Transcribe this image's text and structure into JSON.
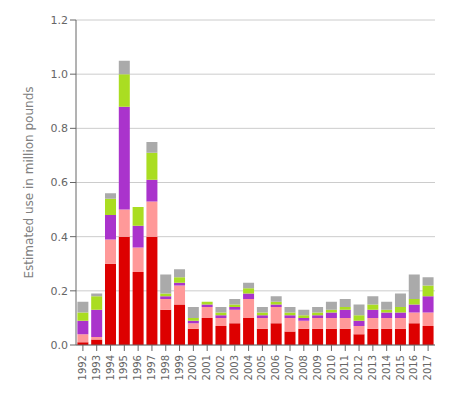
{
  "chart_data": {
    "type": "bar",
    "stacked": true,
    "ylabel": "Estimated use in million pounds",
    "categories": [
      "1992",
      "1993",
      "1994",
      "1995",
      "1996",
      "1997",
      "1998",
      "1999",
      "2000",
      "2001",
      "2002",
      "2003",
      "2004",
      "2005",
      "2006",
      "2007",
      "2008",
      "2009",
      "2010",
      "2011",
      "2012",
      "2013",
      "2014",
      "2015",
      "2016",
      "2017"
    ],
    "series": [
      {
        "color": "#dd0000",
        "values": [
          0.01,
          0.02,
          0.3,
          0.4,
          0.27,
          0.4,
          0.13,
          0.15,
          0.06,
          0.1,
          0.07,
          0.08,
          0.1,
          0.06,
          0.08,
          0.05,
          0.06,
          0.06,
          0.06,
          0.06,
          0.04,
          0.06,
          0.06,
          0.06,
          0.08,
          0.07
        ]
      },
      {
        "color": "#ff9999",
        "values": [
          0.03,
          0.01,
          0.09,
          0.1,
          0.09,
          0.13,
          0.04,
          0.07,
          0.02,
          0.04,
          0.03,
          0.05,
          0.07,
          0.04,
          0.06,
          0.05,
          0.03,
          0.04,
          0.04,
          0.04,
          0.03,
          0.04,
          0.04,
          0.04,
          0.04,
          0.05
        ]
      },
      {
        "color": "#aa33cc",
        "values": [
          0.05,
          0.1,
          0.09,
          0.38,
          0.08,
          0.08,
          0.01,
          0.01,
          0.01,
          0.01,
          0.01,
          0.01,
          0.02,
          0.01,
          0.01,
          0.01,
          0.01,
          0.01,
          0.02,
          0.03,
          0.02,
          0.03,
          0.02,
          0.02,
          0.03,
          0.06
        ]
      },
      {
        "color": "#aadd22",
        "values": [
          0.03,
          0.05,
          0.06,
          0.12,
          0.07,
          0.1,
          0.01,
          0.02,
          0.01,
          0.01,
          0.01,
          0.01,
          0.02,
          0.01,
          0.01,
          0.01,
          0.01,
          0.01,
          0.01,
          0.01,
          0.02,
          0.02,
          0.01,
          0.02,
          0.02,
          0.04
        ]
      },
      {
        "color": "#aaaaaa",
        "values": [
          0.04,
          0.01,
          0.02,
          0.05,
          0.0,
          0.04,
          0.07,
          0.03,
          0.04,
          0.0,
          0.02,
          0.02,
          0.02,
          0.02,
          0.02,
          0.02,
          0.02,
          0.02,
          0.03,
          0.03,
          0.04,
          0.03,
          0.03,
          0.05,
          0.09,
          0.03
        ]
      }
    ],
    "ylim": [
      0,
      1.2
    ],
    "yticks": [
      {
        "value": 0,
        "label": "0.0"
      },
      0.2,
      0.4,
      0.6,
      0.8,
      {
        "value": 1,
        "label": "1.0"
      },
      1.2
    ],
    "grid": true
  }
}
